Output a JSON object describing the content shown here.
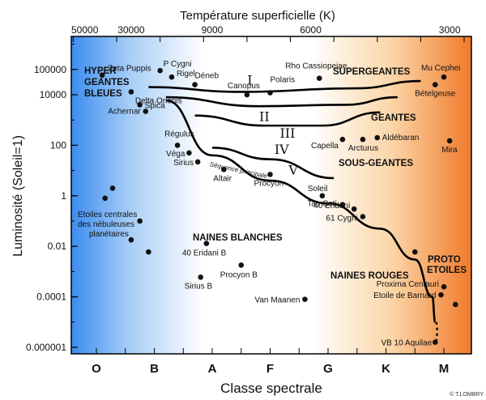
{
  "chart_data": {
    "type": "scatter",
    "title": "Température superficielle (K)",
    "xlabel": "Classe spectrale",
    "ylabel": "Luminosité (Soleil=1)",
    "ylim": [
      1e-06,
      1000000
    ],
    "y_scale": "log",
    "y_ticks": [
      "0.000001",
      "0.0001",
      "0.01",
      "1",
      "100",
      "10000",
      "100000"
    ],
    "top_ticks": [
      "50000",
      "30000",
      "9000",
      "6000",
      "3000"
    ],
    "spectral_classes": [
      "O",
      "B",
      "A",
      "F",
      "G",
      "K",
      "M"
    ],
    "background_gradient": [
      "#3c8cf0",
      "#a9cff6",
      "#ffffff",
      "#ffffff",
      "#fbd6a8",
      "#f07a2a"
    ],
    "stars": [
      {
        "name": "Zeta Puppis",
        "x": 0.1,
        "y": 60000
      },
      {
        "name": "P Cygni",
        "x": 1.1,
        "y": 90000
      },
      {
        "name": "Rigel",
        "x": 1.3,
        "y": 50000
      },
      {
        "name": "Déneb",
        "x": 1.7,
        "y": 25000
      },
      {
        "name": "Delta Orionis",
        "x": 0.6,
        "y": 13000
      },
      {
        "name": "Spica",
        "x": 0.75,
        "y": 4000
      },
      {
        "name": "Achernar",
        "x": 0.85,
        "y": 2200
      },
      {
        "name": "Régulus",
        "x": 1.4,
        "y": 100
      },
      {
        "name": "Véga",
        "x": 1.6,
        "y": 50
      },
      {
        "name": "Sirius",
        "x": 1.75,
        "y": 22
      },
      {
        "name": "Altair",
        "x": 2.2,
        "y": 11
      },
      {
        "name": "Procyon",
        "x": 3.0,
        "y": 7
      },
      {
        "name": "Soleil",
        "x": 3.9,
        "y": 1
      },
      {
        "name": "Tau Ceti",
        "x": 4.25,
        "y": 0.45
      },
      {
        "name": "40 Eridani",
        "x": 4.45,
        "y": 0.3
      },
      {
        "name": "61 Cygni",
        "x": 4.6,
        "y": 0.15
      },
      {
        "name": "Canopus",
        "x": 2.6,
        "y": 10000
      },
      {
        "name": "Polaris",
        "x": 3.0,
        "y": 12000
      },
      {
        "name": "Rho Cassiopeiae",
        "x": 3.85,
        "y": 45000
      },
      {
        "name": "Mu Cephei",
        "x": 6.0,
        "y": 50000
      },
      {
        "name": "Bételgeuse",
        "x": 5.85,
        "y": 25000
      },
      {
        "name": "Capella",
        "x": 4.25,
        "y": 170
      },
      {
        "name": "Arcturus",
        "x": 4.6,
        "y": 170
      },
      {
        "name": "Aldébaran",
        "x": 4.85,
        "y": 200
      },
      {
        "name": "Mira",
        "x": 6.1,
        "y": 150
      },
      {
        "name": "40 Eridani B",
        "x": 1.9,
        "y": 0.013
      },
      {
        "name": "Procyon B",
        "x": 2.5,
        "y": 0.0018
      },
      {
        "name": "Sirius B",
        "x": 1.8,
        "y": 0.0006
      },
      {
        "name": "Van Maanen",
        "x": 3.6,
        "y": 8e-05
      },
      {
        "name": "Proxima Centauri",
        "x": 6.0,
        "y": 0.00025
      },
      {
        "name": "Etoile de Barnard",
        "x": 5.95,
        "y": 0.00012
      },
      {
        "name": "VB 10 Aquilae",
        "x": 5.85,
        "y": 1.6e-06
      }
    ],
    "unlabeled_stars": [
      {
        "x": 0.28,
        "y": 2
      },
      {
        "x": 0.15,
        "y": 0.8
      },
      {
        "x": 0.75,
        "y": 0.1
      },
      {
        "x": 0.6,
        "y": 0.018
      },
      {
        "x": 0.9,
        "y": 0.006
      },
      {
        "x": 5.5,
        "y": 0.006
      },
      {
        "x": 6.2,
        "y": 5e-05
      }
    ],
    "group_labels": [
      "HYPER GEANTES BLEUES",
      "SUPERGEANTES",
      "GEANTES",
      "SOUS-GEANTES",
      "NAINES BLANCHES",
      "NAINES ROUGES",
      "PROTO ETOILES"
    ],
    "luminosity_classes": [
      "I",
      "II",
      "III",
      "IV",
      "V"
    ],
    "main_sequence_label": "Séquence principale",
    "credit": "© T.LOMBRY"
  }
}
